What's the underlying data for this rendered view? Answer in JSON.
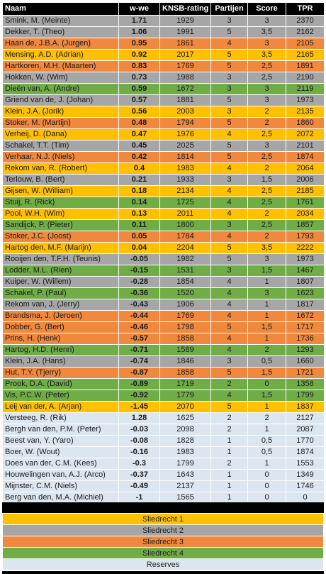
{
  "colors": {
    "sliedrecht1": "#ffc000",
    "sliedrecht2": "#a6a6a6",
    "sliedrecht3": "#f0883e",
    "sliedrecht4": "#70ad47",
    "reserves": "#dce6f1"
  },
  "headers": [
    "Naam",
    "w-we",
    "KNSB-rating",
    "Partijen",
    "Score",
    "TPR"
  ],
  "rows": [
    {
      "naam": "Smink, M. (Meinte)",
      "wwe": "1.71",
      "rating": "1929",
      "partijen": "3",
      "score": "3",
      "tpr": "2370",
      "team": "sliedrecht2"
    },
    {
      "naam": "Dekker, T. (Theo)",
      "wwe": "1.06",
      "rating": "1991",
      "partijen": "5",
      "score": "3,5",
      "tpr": "2162",
      "team": "sliedrecht2"
    },
    {
      "naam": "Haan de, J.B.A. (Jurgen)",
      "wwe": "0.95",
      "rating": "1861",
      "partijen": "4",
      "score": "3",
      "tpr": "2105",
      "team": "sliedrecht3"
    },
    {
      "naam": "Mensing, A.D. (Adrian)",
      "wwe": "0.92",
      "rating": "2017",
      "partijen": "5",
      "score": "3,5",
      "tpr": "2165",
      "team": "sliedrecht1"
    },
    {
      "naam": "Hartkoren, M.H. (Maarten)",
      "wwe": "0.83",
      "rating": "1769",
      "partijen": "5",
      "score": "2,5",
      "tpr": "1891",
      "team": "sliedrecht3"
    },
    {
      "naam": "Hokken, W. (Wim)",
      "wwe": "0.73",
      "rating": "1988",
      "partijen": "3",
      "score": "2,5",
      "tpr": "2190",
      "team": "sliedrecht2"
    },
    {
      "naam": "Dieën van, A. (Andre)",
      "wwe": "0.59",
      "rating": "1672",
      "partijen": "3",
      "score": "3",
      "tpr": "2119",
      "team": "sliedrecht4"
    },
    {
      "naam": "Griend van de, J. (Johan)",
      "wwe": "0.57",
      "rating": "1881",
      "partijen": "5",
      "score": "3",
      "tpr": "1973",
      "team": "sliedrecht2"
    },
    {
      "naam": "Klein, J.A. (Jorik)",
      "wwe": "0.56",
      "rating": "2003",
      "partijen": "3",
      "score": "2",
      "tpr": "2135",
      "team": "sliedrecht1"
    },
    {
      "naam": "Stoker, M. (Martijn)",
      "wwe": "0.48",
      "rating": "1794",
      "partijen": "5",
      "score": "2",
      "tpr": "1860",
      "team": "sliedrecht3"
    },
    {
      "naam": "Verheij, D. (Dana)",
      "wwe": "0.47",
      "rating": "1976",
      "partijen": "4",
      "score": "2,5",
      "tpr": "2072",
      "team": "sliedrecht1"
    },
    {
      "naam": "Schakel, T.T. (Tim)",
      "wwe": "0.45",
      "rating": "2025",
      "partijen": "5",
      "score": "3",
      "tpr": "2101",
      "team": "sliedrecht2"
    },
    {
      "naam": "Verhaar, N.J. (Niels)",
      "wwe": "0.42",
      "rating": "1814",
      "partijen": "5",
      "score": "2,5",
      "tpr": "1874",
      "team": "sliedrecht3"
    },
    {
      "naam": "Rekom van, R. (Robert)",
      "wwe": "0.4",
      "rating": "1983",
      "partijen": "4",
      "score": "2",
      "tpr": "2064",
      "team": "sliedrecht1"
    },
    {
      "naam": "Terlouw, B. (Bert)",
      "wwe": "0.21",
      "rating": "1933",
      "partijen": "3",
      "score": "1,5",
      "tpr": "2006",
      "team": "sliedrecht2"
    },
    {
      "naam": "Gijsen, W. (William)",
      "wwe": "0.18",
      "rating": "2134",
      "partijen": "4",
      "score": "2,5",
      "tpr": "2185",
      "team": "sliedrecht1"
    },
    {
      "naam": "Stuij, R. (Rick)",
      "wwe": "0.14",
      "rating": "1725",
      "partijen": "4",
      "score": "2,5",
      "tpr": "1761",
      "team": "sliedrecht4"
    },
    {
      "naam": "Pool, W.H. (Wim)",
      "wwe": "0.13",
      "rating": "2011",
      "partijen": "4",
      "score": "2",
      "tpr": "2034",
      "team": "sliedrecht1"
    },
    {
      "naam": "Sandijck, P. (Pieter)",
      "wwe": "0.11",
      "rating": "1800",
      "partijen": "3",
      "score": "2,5",
      "tpr": "1857",
      "team": "sliedrecht4"
    },
    {
      "naam": "Stoker, J.C. (Joost)",
      "wwe": "0.05",
      "rating": "1784",
      "partijen": "4",
      "score": "2",
      "tpr": "1793",
      "team": "sliedrecht3"
    },
    {
      "naam": "Hartog den, M.F. (Marijn)",
      "wwe": "0.04",
      "rating": "2204",
      "partijen": "5",
      "score": "3,5",
      "tpr": "2222",
      "team": "sliedrecht1"
    },
    {
      "naam": "Rooijen den, T.F.H. (Teunis)",
      "wwe": "-0.05",
      "rating": "1982",
      "partijen": "5",
      "score": "3",
      "tpr": "1973",
      "team": "sliedrecht2"
    },
    {
      "naam": "Lodder, M.L. (Rien)",
      "wwe": "-0.15",
      "rating": "1531",
      "partijen": "3",
      "score": "1,5",
      "tpr": "1467",
      "team": "sliedrecht4"
    },
    {
      "naam": "Kuiper, W. (Willem)",
      "wwe": "-0.28",
      "rating": "1854",
      "partijen": "4",
      "score": "1",
      "tpr": "1807",
      "team": "sliedrecht2"
    },
    {
      "naam": "Schakel, P. (Paul)",
      "wwe": "-0.36",
      "rating": "1520",
      "partijen": "4",
      "score": "3",
      "tpr": "1623",
      "team": "sliedrecht4"
    },
    {
      "naam": "Rekom van, J. (Jerry)",
      "wwe": "-0.43",
      "rating": "1906",
      "partijen": "4",
      "score": "1",
      "tpr": "1817",
      "team": "sliedrecht2"
    },
    {
      "naam": "Brandsma, J. (Jeroen)",
      "wwe": "-0.44",
      "rating": "1769",
      "partijen": "4",
      "score": "1",
      "tpr": "1672",
      "team": "sliedrecht3"
    },
    {
      "naam": "Dobber, G. (Bert)",
      "wwe": "-0.46",
      "rating": "1798",
      "partijen": "5",
      "score": "1,5",
      "tpr": "1717",
      "team": "sliedrecht3"
    },
    {
      "naam": "Prins, H. (Henk)",
      "wwe": "-0.57",
      "rating": "1858",
      "partijen": "4",
      "score": "1",
      "tpr": "1736",
      "team": "sliedrecht3"
    },
    {
      "naam": "Hartog, H.D. (Henri)",
      "wwe": "-0.71",
      "rating": "1589",
      "partijen": "4",
      "score": "2",
      "tpr": "1293",
      "team": "sliedrecht4"
    },
    {
      "naam": "Klein, J.A. (Hans)",
      "wwe": "-0.74",
      "rating": "1846",
      "partijen": "3",
      "score": "0,5",
      "tpr": "1660",
      "team": "sliedrecht2"
    },
    {
      "naam": "Hut, T.Y. (Tjerry)",
      "wwe": "-0.87",
      "rating": "1858",
      "partijen": "5",
      "score": "1,5",
      "tpr": "1721",
      "team": "sliedrecht3"
    },
    {
      "naam": "Prook, D.A. (David)",
      "wwe": "-0.89",
      "rating": "1719",
      "partijen": "2",
      "score": "0",
      "tpr": "1358",
      "team": "sliedrecht4"
    },
    {
      "naam": "Vis, P.C.W. (Peter)",
      "wwe": "-0.92",
      "rating": "1779",
      "partijen": "4",
      "score": "1,5",
      "tpr": "1799",
      "team": "sliedrecht4"
    },
    {
      "naam": "Leij van der, A. (Arjan)",
      "wwe": "-1.45",
      "rating": "2070",
      "partijen": "5",
      "score": "1",
      "tpr": "1837",
      "team": "sliedrecht1"
    },
    {
      "naam": "Versteeg, R. (Rik)",
      "wwe": "1.28",
      "rating": "1625",
      "partijen": "2",
      "score": "2",
      "tpr": "2127",
      "team": "reserves"
    },
    {
      "naam": "Bergh van den, P.M. (Peter)",
      "wwe": "-0.03",
      "rating": "2098",
      "partijen": "2",
      "score": "1",
      "tpr": "2087",
      "team": "reserves"
    },
    {
      "naam": "Beest van, Y. (Yaro)",
      "wwe": "-0.08",
      "rating": "1828",
      "partijen": "1",
      "score": "0,5",
      "tpr": "1770",
      "team": "reserves"
    },
    {
      "naam": "Boer, W. (Wout)",
      "wwe": "-0.16",
      "rating": "1983",
      "partijen": "1",
      "score": "0,5",
      "tpr": "1874",
      "team": "reserves"
    },
    {
      "naam": "Does van der, C.M. (Kees)",
      "wwe": "-0.3",
      "rating": "1799",
      "partijen": "2",
      "score": "1",
      "tpr": "1553",
      "team": "reserves"
    },
    {
      "naam": "Houwelingen van, A.J. (Arco)",
      "wwe": "-0.37",
      "rating": "1643",
      "partijen": "1",
      "score": "0",
      "tpr": "1349",
      "team": "reserves"
    },
    {
      "naam": "Mijnster, C.M. (Niels)",
      "wwe": "-0.49",
      "rating": "2137",
      "partijen": "1",
      "score": "0",
      "tpr": "1746",
      "team": "reserves"
    },
    {
      "naam": "Berg van den, M.A. (Michiel)",
      "wwe": "-1",
      "rating": "1565",
      "partijen": "1",
      "score": "0",
      "tpr": "0",
      "team": "reserves"
    }
  ],
  "legend": [
    {
      "label": "Sliedrecht 1",
      "team": "sliedrecht1"
    },
    {
      "label": "Sliedrecht 2",
      "team": "sliedrecht2"
    },
    {
      "label": "Sliedrecht 3",
      "team": "sliedrecht3"
    },
    {
      "label": "Sliedrecht 4",
      "team": "sliedrecht4"
    },
    {
      "label": "Reserves",
      "team": "reserves"
    }
  ]
}
